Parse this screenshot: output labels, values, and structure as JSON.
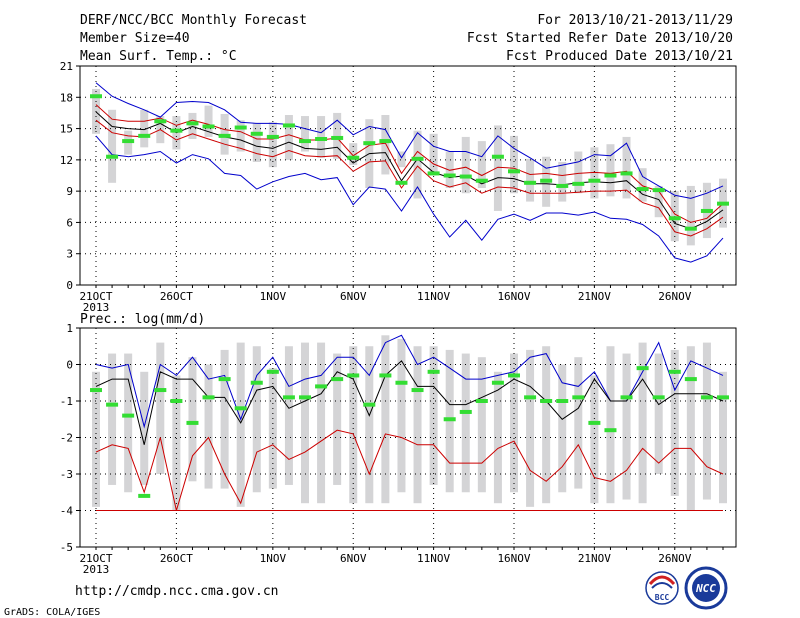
{
  "header": {
    "title": "DERF/NCC/BCC Monthly Forecast",
    "member_size": "Member Size=40",
    "variable": "Mean Surf. Temp.: °C",
    "period": "For 2013/10/21-2013/11/29",
    "started": "Fcst Started Refer Date 2013/10/20",
    "produced": "Fcst Produced Date 2013/10/21"
  },
  "footer": {
    "url": "http://cmdp.ncc.cma.gov.cn",
    "grads": "GrADS: COLA/IGES",
    "logo_bcc": "BCC",
    "logo_ncc": "NCC"
  },
  "colors": {
    "box": "#d4d4d6",
    "marker": "#33dd33",
    "mean": "#000000",
    "spread": "#cc0000",
    "extreme": "#0000cc",
    "grid": "#000000"
  },
  "chart_data": [
    {
      "type": "line",
      "title": "Mean Surf. Temp.: °C",
      "ylim": [
        0,
        21
      ],
      "yticks": [
        0,
        3,
        6,
        9,
        12,
        15,
        18,
        21
      ],
      "xticks": [
        {
          "day": 1,
          "label": "21OCT",
          "sub": "2013"
        },
        {
          "day": 6,
          "label": "26OCT"
        },
        {
          "day": 12,
          "label": "1NOV"
        },
        {
          "day": 17,
          "label": "6NOV"
        },
        {
          "day": 22,
          "label": "11NOV"
        },
        {
          "day": 27,
          "label": "16NOV"
        },
        {
          "day": 32,
          "label": "21NOV"
        },
        {
          "day": 37,
          "label": "26NOV"
        }
      ],
      "days": [
        1,
        2,
        3,
        4,
        5,
        6,
        7,
        8,
        9,
        10,
        11,
        12,
        13,
        14,
        15,
        16,
        17,
        18,
        19,
        20,
        21,
        22,
        23,
        24,
        25,
        26,
        27,
        28,
        29,
        30,
        31,
        32,
        33,
        34,
        35,
        36,
        37,
        38,
        39,
        40
      ],
      "box_low": [
        14.5,
        9.8,
        12.5,
        13.2,
        13.6,
        13,
        14,
        14.2,
        12.5,
        12.8,
        11.8,
        11.3,
        12,
        12.8,
        12.2,
        12.1,
        11.5,
        9.3,
        10.6,
        11.3,
        8.3,
        10.5,
        9.3,
        8.8,
        9.3,
        7.1,
        8.8,
        8,
        7.5,
        8,
        8.8,
        8.3,
        8.5,
        8.3,
        8,
        6.5,
        4.2,
        3.8,
        4.5,
        5.5
      ],
      "box_high": [
        18.8,
        16.8,
        14.8,
        16.8,
        16.2,
        16.2,
        16.5,
        17.2,
        16.4,
        15.8,
        15.5,
        15.6,
        16.3,
        16.2,
        16.2,
        16.5,
        13.6,
        15.9,
        16.3,
        12.8,
        14.8,
        14.5,
        12.8,
        14.2,
        13.8,
        15.3,
        14.3,
        12.1,
        12.3,
        11.8,
        12.8,
        13.2,
        13.5,
        14.2,
        11.2,
        9.5,
        9,
        9.5,
        9.8,
        10.2
      ],
      "marker": [
        18.1,
        12.3,
        13.8,
        14.3,
        15.7,
        14.8,
        15.5,
        15.2,
        14.3,
        15.1,
        14.5,
        14.2,
        15.3,
        13.8,
        14,
        14.1,
        12.2,
        13.6,
        13.8,
        9.8,
        12.1,
        10.7,
        10.5,
        10.4,
        10,
        12.3,
        10.9,
        9.8,
        10,
        9.5,
        9.7,
        10,
        10.5,
        10.7,
        9.2,
        9.1,
        6.4,
        5.4,
        7.1,
        7.8
      ],
      "series": [
        {
          "name": "max",
          "role": "extreme",
          "values": [
            19.4,
            18.1,
            17.4,
            16.8,
            16.1,
            17.5,
            17.6,
            17.5,
            16.8,
            15.6,
            15.5,
            15.5,
            15.4,
            15,
            14.6,
            15.8,
            14.4,
            15.2,
            14.9,
            12.2,
            14.6,
            13.3,
            12.8,
            12.8,
            12.3,
            14.3,
            13.1,
            12.2,
            11.2,
            11.5,
            11.8,
            12.5,
            12.4,
            13.6,
            10.4,
            9.5,
            8.6,
            8.3,
            8.8,
            9.5
          ]
        },
        {
          "name": "upper",
          "role": "spread",
          "values": [
            17.3,
            15.9,
            15.7,
            15.7,
            16,
            15.3,
            15.8,
            15.4,
            14.9,
            14.7,
            14,
            14,
            14.4,
            13.9,
            13.9,
            14.1,
            12.4,
            13.4,
            13.6,
            10.7,
            12.8,
            11.6,
            11,
            11.3,
            10.5,
            11.3,
            11.2,
            10.6,
            10.7,
            10.5,
            10.7,
            10.8,
            10.7,
            10.9,
            9.5,
            9,
            6.8,
            6,
            6.4,
            7.8
          ]
        },
        {
          "name": "mean",
          "role": "mean",
          "values": [
            16.6,
            15.2,
            15,
            14.9,
            15.5,
            14.6,
            15.2,
            14.7,
            14.2,
            13.9,
            13.3,
            13.1,
            13.7,
            13.1,
            13,
            13.2,
            11.7,
            12.6,
            12.7,
            10,
            12.1,
            10.8,
            10.3,
            10.5,
            9.7,
            10.3,
            10.2,
            9.7,
            9.7,
            9.6,
            9.8,
            9.9,
            9.8,
            10,
            8.7,
            8.2,
            5.9,
            5.4,
            6.1,
            7.2
          ]
        },
        {
          "name": "lower",
          "role": "spread",
          "values": [
            15.8,
            14.6,
            14.3,
            14.2,
            14.9,
            13.9,
            14.5,
            14,
            13.5,
            13.1,
            12.6,
            12.3,
            12.9,
            12.4,
            12.3,
            12.4,
            10.9,
            11.8,
            11.9,
            9.3,
            11.4,
            10,
            9.4,
            9.8,
            8.8,
            9.4,
            9.3,
            8.8,
            8.8,
            8.8,
            8.9,
            9,
            9,
            9.1,
            7.9,
            7.4,
            5.1,
            4.7,
            5.4,
            6.5
          ]
        },
        {
          "name": "min",
          "role": "extreme",
          "values": [
            14.3,
            12.5,
            12.3,
            12.5,
            12.8,
            11.7,
            12.5,
            12.1,
            10.7,
            10.5,
            9.2,
            9.9,
            10.4,
            10.7,
            10.1,
            10.3,
            7.7,
            9.4,
            9.2,
            7.1,
            9.4,
            6.8,
            4.6,
            6.2,
            4.3,
            6.3,
            6.8,
            6.2,
            6.9,
            6.9,
            6.7,
            7,
            6.4,
            6.3,
            5.8,
            4.7,
            2.6,
            2.2,
            2.8,
            4.5
          ]
        }
      ]
    },
    {
      "type": "line",
      "title": "Prec.: log(mm/d)",
      "ylim": [
        -5,
        1
      ],
      "yticks": [
        -5,
        -4,
        -3,
        -2,
        -1,
        0,
        1
      ],
      "xticks": [
        {
          "day": 1,
          "label": "21OCT",
          "sub": "2013"
        },
        {
          "day": 6,
          "label": "26OCT"
        },
        {
          "day": 12,
          "label": "1NOV"
        },
        {
          "day": 17,
          "label": "6NOV"
        },
        {
          "day": 22,
          "label": "11NOV"
        },
        {
          "day": 27,
          "label": "16NOV"
        },
        {
          "day": 32,
          "label": "21NOV"
        },
        {
          "day": 37,
          "label": "26NOV"
        }
      ],
      "days": [
        1,
        2,
        3,
        4,
        5,
        6,
        7,
        8,
        9,
        10,
        11,
        12,
        13,
        14,
        15,
        16,
        17,
        18,
        19,
        20,
        21,
        22,
        23,
        24,
        25,
        26,
        27,
        28,
        29,
        30,
        31,
        32,
        33,
        34,
        35,
        36,
        37,
        38,
        39,
        40
      ],
      "box_low": [
        -3.9,
        -3.3,
        -3.5,
        -3.3,
        -3,
        -4,
        -3.2,
        -3.4,
        -3.4,
        -3.9,
        -3.5,
        -3.4,
        -3.3,
        -3.8,
        -3.8,
        -3.3,
        -3.8,
        -3.8,
        -3.8,
        -3.5,
        -3.8,
        -3.3,
        -3.5,
        -3.5,
        -3.5,
        -3.8,
        -3.5,
        -3.9,
        -3.8,
        -3.5,
        -3.4,
        -3.8,
        -3.8,
        -3.7,
        -3.8,
        -3,
        -3.6,
        -4,
        -3.7,
        -3.8
      ],
      "box_high": [
        -0.2,
        0.3,
        0.3,
        -0.2,
        0.6,
        -0.3,
        0.2,
        0,
        0.4,
        0.6,
        0.5,
        -0.1,
        0.5,
        0.6,
        0.6,
        0.3,
        0.5,
        0.5,
        0.8,
        0.7,
        0.5,
        0.5,
        0.4,
        0.3,
        0.2,
        -0.2,
        0.3,
        0.4,
        0.5,
        0,
        0.2,
        -0.3,
        0.5,
        0.3,
        0.6,
        0.3,
        0.4,
        0.5,
        0.6,
        -0.2
      ],
      "marker": [
        -0.7,
        -1.1,
        -1.4,
        -3.6,
        -0.7,
        -1,
        -1.6,
        -0.9,
        -0.4,
        -1.2,
        -0.5,
        -0.2,
        -0.9,
        -0.9,
        -0.6,
        -0.4,
        -0.3,
        -1.1,
        -0.3,
        -0.5,
        -0.7,
        -0.2,
        -1.5,
        -1.3,
        -1,
        -0.5,
        -0.3,
        -0.9,
        -1,
        -1,
        -0.9,
        -1.6,
        -1.8,
        -0.9,
        -0.1,
        -0.9,
        -0.2,
        -0.4,
        -0.9,
        -0.9
      ],
      "series": [
        {
          "name": "max",
          "role": "extreme",
          "values": [
            0,
            -0.1,
            0,
            -1.7,
            0,
            -0.3,
            0.2,
            -0.4,
            -0.3,
            -1.5,
            -0.3,
            0.2,
            -0.6,
            -0.4,
            -0.3,
            0.2,
            0.2,
            -0.3,
            0.6,
            0.8,
            0,
            0.2,
            -0.1,
            -0.4,
            -0.4,
            -0.3,
            -0.2,
            0.2,
            0.3,
            -0.5,
            -0.6,
            -0.2,
            -1,
            -1,
            -0.2,
            0.6,
            -0.7,
            0.1,
            -0.1,
            -0.3
          ]
        },
        {
          "name": "mean",
          "role": "mean",
          "values": [
            -0.6,
            -0.4,
            -0.4,
            -2.2,
            -0.2,
            -0.4,
            -0.4,
            -0.9,
            -0.9,
            -1.6,
            -0.7,
            -0.6,
            -1.2,
            -1,
            -0.8,
            -0.2,
            -0.4,
            -1.4,
            -0.3,
            0.1,
            -0.6,
            -0.6,
            -1.1,
            -1.1,
            -0.9,
            -0.7,
            -0.4,
            -0.6,
            -1,
            -1.5,
            -1.2,
            -0.4,
            -1,
            -1,
            -0.4,
            -1.1,
            -0.8,
            -0.8,
            -0.8,
            -1
          ]
        },
        {
          "name": "lower",
          "role": "spread",
          "values": [
            -2.4,
            -2.2,
            -2.3,
            -3.5,
            -2,
            -4,
            -2.5,
            -2,
            -3,
            -3.8,
            -2.4,
            -2.2,
            -2.6,
            -2.4,
            -2.1,
            -1.8,
            -1.9,
            -3,
            -1.9,
            -2,
            -2.2,
            -2.2,
            -2.7,
            -2.7,
            -2.7,
            -2.3,
            -2.1,
            -2.9,
            -3.2,
            -2.8,
            -2.2,
            -3.1,
            -3.2,
            -2.9,
            -2.3,
            -2.7,
            -2.3,
            -2.3,
            -2.8,
            -3
          ]
        },
        {
          "name": "floor",
          "role": "spread",
          "values": [
            -4,
            -4,
            -4,
            -4,
            -4,
            -4,
            -4,
            -4,
            -4,
            -4,
            -4,
            -4,
            -4,
            -4,
            -4,
            -4,
            -4,
            -4,
            -4,
            -4,
            -4,
            -4,
            -4,
            -4,
            -4,
            -4,
            -4,
            -4,
            -4,
            -4,
            -4,
            -4,
            -4,
            -4,
            -4,
            -4,
            -4,
            -4,
            -4,
            -4
          ]
        }
      ]
    }
  ]
}
